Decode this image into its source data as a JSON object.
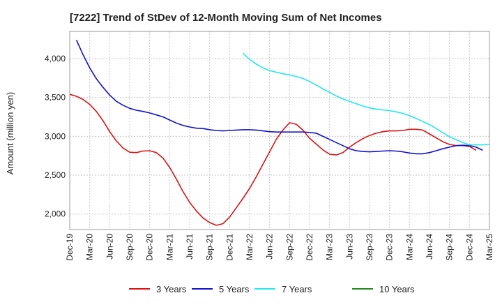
{
  "chart_data": {
    "type": "line",
    "title": "[7222]  Trend of StDev of 12-Month Moving Sum of Net Incomes",
    "xlabel": "",
    "ylabel": "Amount (million yen)",
    "ylim": [
      1800,
      4350
    ],
    "yticks": [
      2000,
      2500,
      3000,
      3500,
      4000
    ],
    "ytick_labels": [
      "2,000",
      "2,500",
      "3,000",
      "3,500",
      "4,000"
    ],
    "xticks": [
      "Dec-19",
      "Mar-20",
      "Jun-20",
      "Sep-20",
      "Dec-20",
      "Mar-21",
      "Jun-21",
      "Sep-21",
      "Dec-21",
      "Mar-22",
      "Jun-22",
      "Sep-22",
      "Dec-22",
      "Mar-23",
      "Jun-23",
      "Sep-23",
      "Dec-23",
      "Mar-24",
      "Jun-24",
      "Sep-24",
      "Dec-24",
      "Mar-25"
    ],
    "grid": true,
    "legend_position": "bottom",
    "series": [
      {
        "name": "3 Years",
        "color": "#dd1111",
        "start": "Dec-19",
        "values": [
          3540,
          3515,
          3475,
          3410,
          3320,
          3200,
          3060,
          2940,
          2850,
          2795,
          2790,
          2810,
          2815,
          2790,
          2720,
          2600,
          2450,
          2290,
          2150,
          2040,
          1950,
          1890,
          1855,
          1875,
          1960,
          2080,
          2200,
          2330,
          2480,
          2640,
          2800,
          2960,
          3080,
          3175,
          3155,
          3080,
          2975,
          2900,
          2825,
          2770,
          2760,
          2790,
          2860,
          2920,
          2970,
          3010,
          3040,
          3060,
          3070,
          3070,
          3075,
          3090,
          3090,
          3080,
          3030,
          2980,
          2930,
          2895,
          2880,
          2880,
          2870,
          2820
        ]
      },
      {
        "name": "5 Years",
        "color": "#1111cc",
        "start": "Jan-20",
        "values": [
          4240,
          4050,
          3880,
          3740,
          3630,
          3530,
          3450,
          3400,
          3360,
          3335,
          3320,
          3300,
          3275,
          3250,
          3210,
          3170,
          3140,
          3120,
          3105,
          3100,
          3085,
          3075,
          3070,
          3075,
          3080,
          3085,
          3085,
          3080,
          3070,
          3060,
          3055,
          3055,
          3055,
          3055,
          3055,
          3050,
          3040,
          3000,
          2960,
          2920,
          2880,
          2840,
          2815,
          2805,
          2800,
          2805,
          2810,
          2815,
          2810,
          2800,
          2785,
          2775,
          2775,
          2790,
          2815,
          2840,
          2860,
          2880,
          2885,
          2880,
          2860,
          2820
        ]
      },
      {
        "name": "7 Years",
        "color": "#22e8e8",
        "start": "Feb-22",
        "values": [
          4070,
          3990,
          3930,
          3880,
          3845,
          3825,
          3805,
          3790,
          3770,
          3745,
          3705,
          3660,
          3610,
          3565,
          3520,
          3480,
          3450,
          3420,
          3390,
          3365,
          3350,
          3340,
          3330,
          3315,
          3295,
          3265,
          3230,
          3190,
          3150,
          3100,
          3045,
          2995,
          2955,
          2920,
          2890,
          2890,
          2890,
          2895
        ]
      },
      {
        "name": "10 Years",
        "color": "#228822",
        "start": "Dec-19",
        "values": []
      }
    ]
  }
}
